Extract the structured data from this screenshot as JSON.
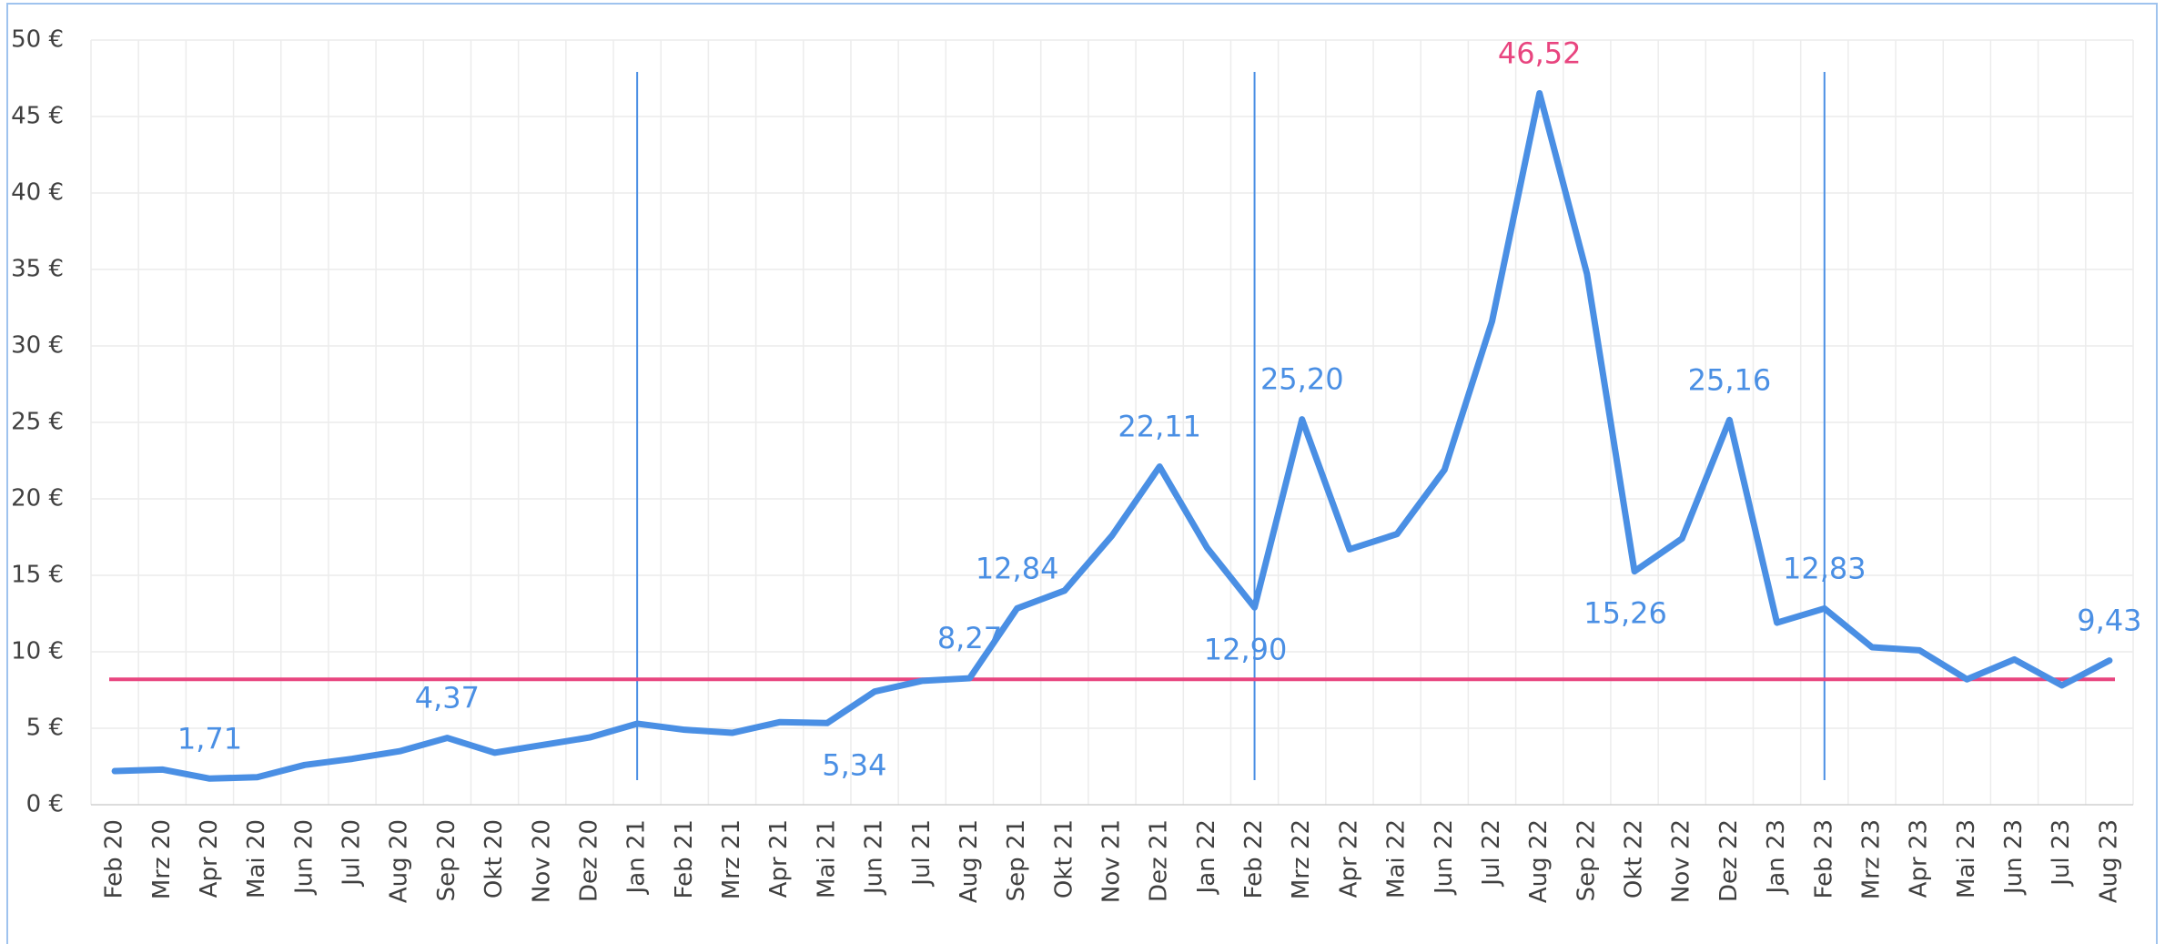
{
  "chart_data": {
    "type": "line",
    "categories": [
      "Feb 20",
      "Mrz 20",
      "Apr 20",
      "Mai 20",
      "Jun 20",
      "Jul 20",
      "Aug 20",
      "Sep 20",
      "Okt 20",
      "Nov 20",
      "Dez 20",
      "Jan 21",
      "Feb 21",
      "Mrz 21",
      "Apr 21",
      "Mai 21",
      "Jun 21",
      "Jul 21",
      "Aug 21",
      "Sep 21",
      "Okt 21",
      "Nov 21",
      "Dez 21",
      "Jan 22",
      "Feb 22",
      "Mrz 22",
      "Apr 22",
      "Mai 22",
      "Jun 22",
      "Jul 22",
      "Aug 22",
      "Sep 22",
      "Okt 22",
      "Nov 22",
      "Dez 22",
      "Jan 23",
      "Feb 23",
      "Mrz 23",
      "Apr 23",
      "Mai 23",
      "Jun 23",
      "Jul 23",
      "Aug 23"
    ],
    "values": [
      2.2,
      2.3,
      1.71,
      1.8,
      2.6,
      3.0,
      3.5,
      4.37,
      3.4,
      3.9,
      4.4,
      5.3,
      4.9,
      4.7,
      5.4,
      5.34,
      7.4,
      8.1,
      8.27,
      12.84,
      14.0,
      17.6,
      22.11,
      16.8,
      12.9,
      25.2,
      16.7,
      17.7,
      21.9,
      31.6,
      46.52,
      34.7,
      15.26,
      17.4,
      25.16,
      11.9,
      12.83,
      10.3,
      10.1,
      8.2,
      9.5,
      7.8,
      9.43
    ],
    "value_labels": [
      null,
      null,
      "1,71",
      null,
      null,
      null,
      null,
      "4,37",
      null,
      null,
      null,
      null,
      null,
      null,
      null,
      "5,34",
      null,
      null,
      "8,27",
      "12,84",
      null,
      null,
      "22,11",
      null,
      "12,90",
      "25,20",
      null,
      null,
      null,
      null,
      "46,52",
      null,
      "15,26",
      null,
      "25,16",
      null,
      "12,83",
      null,
      null,
      null,
      null,
      null,
      "9,43"
    ],
    "color": "#4a8fe4",
    "highlight_color": "#e8457f",
    "reference_line": 8.2,
    "reference_color": "#e8457f",
    "markers": [
      "Jan 21",
      "Feb 22",
      "Feb 23"
    ],
    "ylim": [
      0,
      50
    ],
    "yticks": [
      {
        "value": 0,
        "label": "0 €"
      },
      {
        "value": 5,
        "label": "5 €"
      },
      {
        "value": 10,
        "label": "10 €"
      },
      {
        "value": 15,
        "label": "15 €"
      },
      {
        "value": 20,
        "label": "20 €"
      },
      {
        "value": 25,
        "label": "25 €"
      },
      {
        "value": 30,
        "label": "30 €"
      },
      {
        "value": 35,
        "label": "35 €"
      },
      {
        "value": 40,
        "label": "40 €"
      },
      {
        "value": 45,
        "label": "45 €"
      },
      {
        "value": 50,
        "label": "50 €"
      }
    ],
    "grid": true
  }
}
